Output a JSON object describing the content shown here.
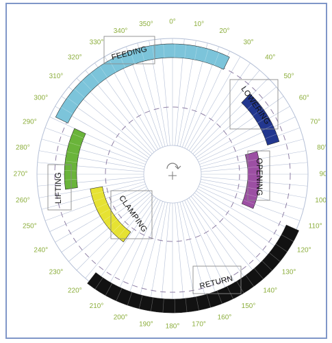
{
  "chart_data": {
    "type": "polar-timing",
    "degree_labels": [
      "0°",
      "10°",
      "20°",
      "30°",
      "40°",
      "50°",
      "60°",
      "70°",
      "80°",
      "90°",
      "100°",
      "110°",
      "120°",
      "130°",
      "140°",
      "150°",
      "160°",
      "170°",
      "180°",
      "190°",
      "200°",
      "210°",
      "220°",
      "230°",
      "240°",
      "250°",
      "260°",
      "270°",
      "280°",
      "290°",
      "300°",
      "310°",
      "320°",
      "330°",
      "340°",
      "350°"
    ],
    "phases": [
      {
        "key": "feeding",
        "name": "FEEDING",
        "start": 296,
        "end": 386,
        "color": "#7cc4da"
      },
      {
        "key": "lowering",
        "name": "LOWERING",
        "start": 44,
        "end": 73,
        "color": "#22378f"
      },
      {
        "key": "opening",
        "name": "OPENING",
        "start": 75,
        "end": 113,
        "color": "#9c4fa3"
      },
      {
        "key": "return",
        "name": "RETURN",
        "start": 114,
        "end": 218,
        "color": "#121212"
      },
      {
        "key": "clamping",
        "name": "CLAMPING",
        "start": 216,
        "end": 260,
        "color": "#e6e232"
      },
      {
        "key": "lifting",
        "name": "LIFTING",
        "start": 262,
        "end": 295,
        "color": "#6ab43a"
      }
    ]
  },
  "colors": {
    "frame": "#7f96c8",
    "grid": "#b4bfd6",
    "dashed": "#8e7ea4",
    "degree_label": "#8cae3c"
  },
  "center_mark": {
    "icon": "rotation-arrow-icon"
  }
}
